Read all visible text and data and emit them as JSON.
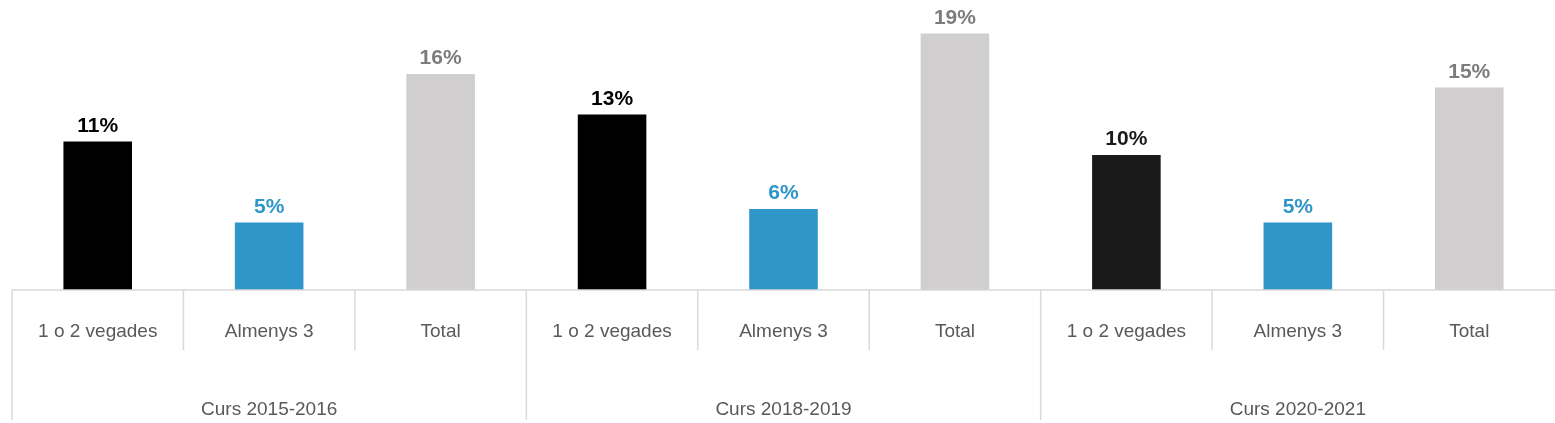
{
  "chart_data": {
    "type": "bar",
    "categories": [
      "1 o 2 vegades",
      "Almenys 3",
      "Total",
      "1 o 2 vegades",
      "Almenys 3",
      "Total",
      "1 o 2 vegades",
      "Almenys 3",
      "Total"
    ],
    "values": [
      11,
      5,
      16,
      13,
      6,
      19,
      10,
      5,
      15
    ],
    "colors": [
      "#000000",
      "#2e96c8",
      "#d0cecf",
      "#000000",
      "#2e96c8",
      "#d0cecf",
      "#1a1a1a",
      "#2e96c8",
      "#d0cecf"
    ],
    "value_labels": [
      "11%",
      "5%",
      "16%",
      "13%",
      "6%",
      "19%",
      "10%",
      "5%",
      "15%"
    ],
    "annotations": [
      "Curs 2015-2016",
      "Curs 2018-2019",
      "Curs 2020-2021"
    ]
  }
}
